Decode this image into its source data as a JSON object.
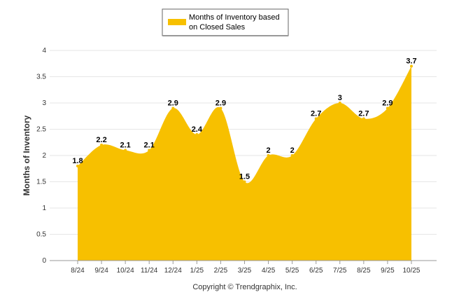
{
  "chart_data": {
    "type": "area",
    "categories": [
      "8/24",
      "9/24",
      "10/24",
      "11/24",
      "12/24",
      "1/25",
      "2/25",
      "3/25",
      "4/25",
      "5/25",
      "6/25",
      "7/25",
      "8/25",
      "9/25",
      "10/25"
    ],
    "series": [
      {
        "name": "Months of Inventory based on Closed Sales",
        "values": [
          1.8,
          2.2,
          2.1,
          2.1,
          2.9,
          2.4,
          2.9,
          1.5,
          2,
          2,
          2.7,
          3,
          2.7,
          2.9,
          3.7
        ],
        "color": "#f7c000"
      }
    ],
    "data_labels": [
      "1.8",
      "2.2",
      "2.1",
      "2.1",
      "2.9",
      "2.4",
      "2.9",
      "1.5",
      "2",
      "2",
      "2.7",
      "3",
      "2.7",
      "2.9",
      "3.7"
    ],
    "ylabel": "Months of Inventory",
    "xlabel": "",
    "ylim": [
      0,
      4
    ],
    "yticks": [
      "0",
      "0.5",
      "1",
      "1.5",
      "2",
      "2.5",
      "3",
      "3.5",
      "4"
    ],
    "grid": true,
    "legend_position": "top-center",
    "legend_lines": [
      "Months of Inventory based",
      "on Closed Sales"
    ],
    "copyright": "Copyright © Trendgraphix, Inc."
  }
}
